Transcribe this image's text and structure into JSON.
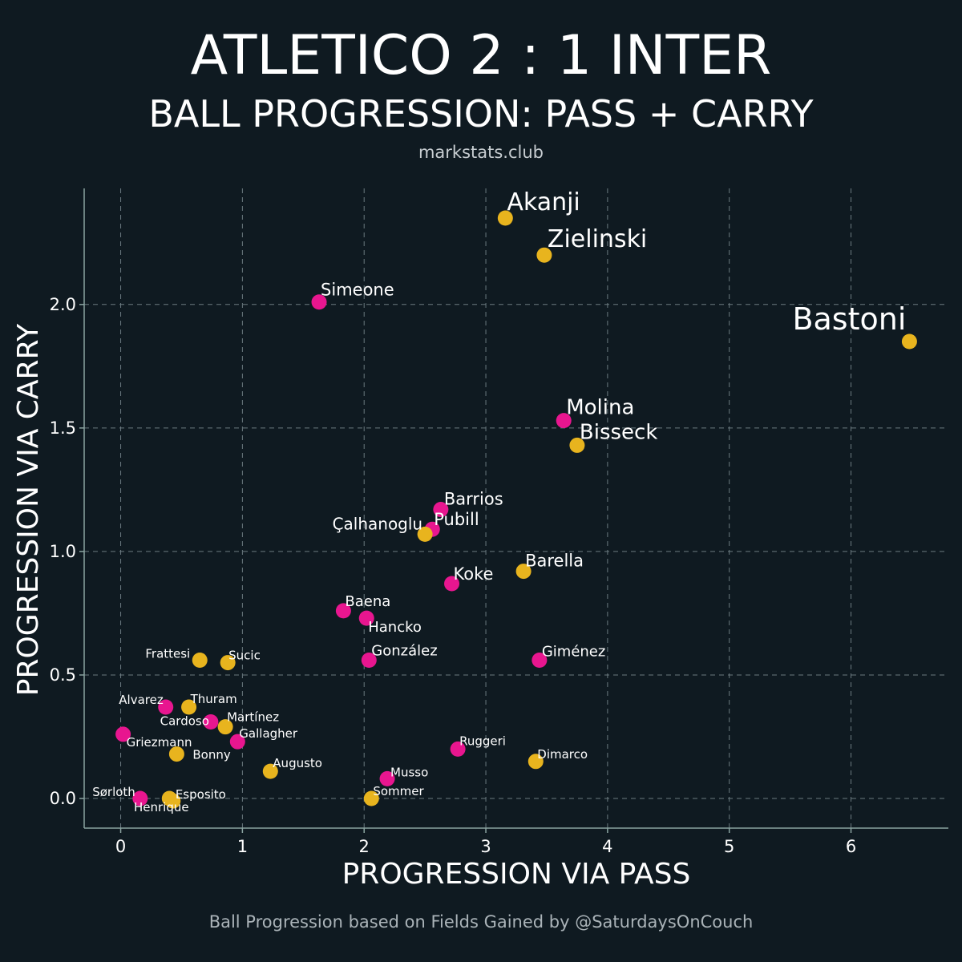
{
  "header": {
    "title": "ATLETICO 2 : 1 INTER",
    "subtitle": "BALL PROGRESSION: PASS + CARRY",
    "source": "markstats.club"
  },
  "footer": "Ball Progression based on Fields Gained by @SaturdaysOnCouch",
  "colors": {
    "background": "#0f1a21",
    "atletico": "#e8168f",
    "inter": "#e8b41e"
  },
  "chart_data": {
    "type": "scatter",
    "xlabel": "PROGRESSION VIA PASS",
    "ylabel": "PROGRESSION VIA CARRY",
    "xlim": [
      -0.3,
      6.8
    ],
    "ylim": [
      -0.12,
      2.47
    ],
    "xticks": [
      0,
      1,
      2,
      3,
      4,
      5,
      6
    ],
    "yticks": [
      0.0,
      0.5,
      1.0,
      1.5,
      2.0
    ],
    "xtick_labels": [
      "0",
      "1",
      "2",
      "3",
      "4",
      "5",
      "6"
    ],
    "ytick_labels": [
      "0.0",
      "0.5",
      "1.0",
      "1.5",
      "2.0"
    ],
    "grid": true,
    "series": [
      {
        "name": "Atletico",
        "color": "#e8168f",
        "points": [
          {
            "name": "Simeone",
            "x": 1.63,
            "y": 2.01
          },
          {
            "name": "Molina",
            "x": 3.64,
            "y": 1.53
          },
          {
            "name": "Barrios",
            "x": 2.63,
            "y": 1.17
          },
          {
            "name": "Pubill",
            "x": 2.56,
            "y": 1.09
          },
          {
            "name": "Koke",
            "x": 2.72,
            "y": 0.87
          },
          {
            "name": "Baena",
            "x": 1.83,
            "y": 0.76
          },
          {
            "name": "Hancko",
            "x": 2.02,
            "y": 0.73
          },
          {
            "name": "González",
            "x": 2.04,
            "y": 0.56
          },
          {
            "name": "Giménez",
            "x": 3.44,
            "y": 0.56
          },
          {
            "name": "Alvarez",
            "x": 0.37,
            "y": 0.37
          },
          {
            "name": "Cardoso",
            "x": 0.74,
            "y": 0.31
          },
          {
            "name": "Gallagher",
            "x": 0.96,
            "y": 0.23
          },
          {
            "name": "Griezmann",
            "x": 0.02,
            "y": 0.26
          },
          {
            "name": "Ruggeri",
            "x": 2.77,
            "y": 0.2
          },
          {
            "name": "Musso",
            "x": 2.19,
            "y": 0.08
          },
          {
            "name": "Sørloth",
            "x": 0.16,
            "y": 0.0
          }
        ]
      },
      {
        "name": "Inter",
        "color": "#e8b41e",
        "points": [
          {
            "name": "Akanji",
            "x": 3.16,
            "y": 2.35
          },
          {
            "name": "Zielinski",
            "x": 3.48,
            "y": 2.2
          },
          {
            "name": "Bastoni",
            "x": 6.48,
            "y": 1.85
          },
          {
            "name": "Bisseck",
            "x": 3.75,
            "y": 1.43
          },
          {
            "name": "Çalhanoglu",
            "x": 2.5,
            "y": 1.07
          },
          {
            "name": "Barella",
            "x": 3.31,
            "y": 0.92
          },
          {
            "name": "Frattesi",
            "x": 0.65,
            "y": 0.56
          },
          {
            "name": "Sucic",
            "x": 0.88,
            "y": 0.55
          },
          {
            "name": "Thuram",
            "x": 0.56,
            "y": 0.37
          },
          {
            "name": "Martínez",
            "x": 0.86,
            "y": 0.29
          },
          {
            "name": "Bonny",
            "x": 0.46,
            "y": 0.18
          },
          {
            "name": "Augusto",
            "x": 1.23,
            "y": 0.11
          },
          {
            "name": "Dimarco",
            "x": 3.41,
            "y": 0.15
          },
          {
            "name": "Sommer",
            "x": 2.06,
            "y": 0.0
          },
          {
            "name": "Henrique",
            "x": 0.4,
            "y": 0.0
          },
          {
            "name": "Esposito",
            "x": 0.43,
            "y": -0.01
          }
        ]
      }
    ]
  }
}
